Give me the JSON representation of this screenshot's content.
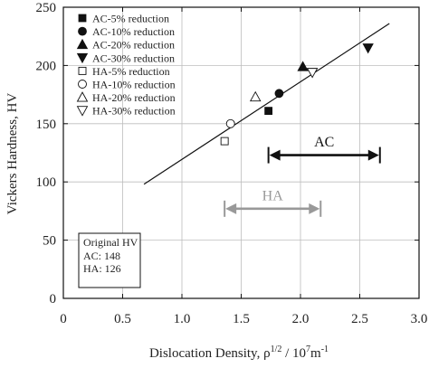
{
  "chart_data": {
    "type": "scatter",
    "xlabel": "Dislocation Density, ρ",
    "xlabel_sup1": "1/2",
    "xlabel_mid": " / 10",
    "xlabel_sup2": "7",
    "xlabel_end": "m",
    "xlabel_sup3": "-1",
    "ylabel": "Vickers Hardness, HV",
    "xlim": [
      0,
      3.0
    ],
    "ylim": [
      0,
      250
    ],
    "xticks": [
      0,
      0.5,
      1.0,
      1.5,
      2.0,
      2.5,
      3.0
    ],
    "xtick_labels": [
      "0",
      "0.5",
      "1.0",
      "1.5",
      "2.0",
      "2.5",
      "3.0"
    ],
    "yticks": [
      0,
      50,
      100,
      150,
      200,
      250
    ],
    "ytick_labels": [
      "0",
      "50",
      "100",
      "150",
      "200",
      "250"
    ],
    "grid": true,
    "legend_position": "top-left",
    "series": [
      {
        "name": "AC-5% reduction",
        "marker": "square-filled",
        "x": [
          1.73
        ],
        "y": [
          161
        ]
      },
      {
        "name": "AC-10% reduction",
        "marker": "circle-filled",
        "x": [
          1.82
        ],
        "y": [
          176
        ]
      },
      {
        "name": "AC-20% reduction",
        "marker": "triangle-up-filled",
        "x": [
          2.02
        ],
        "y": [
          199
        ]
      },
      {
        "name": "AC-30% reduction",
        "marker": "triangle-down-filled",
        "x": [
          2.57
        ],
        "y": [
          215
        ]
      },
      {
        "name": "HA-5% reduction",
        "marker": "square-open",
        "x": [
          1.36
        ],
        "y": [
          135
        ]
      },
      {
        "name": "HA-10% reduction",
        "marker": "circle-open",
        "x": [
          1.41
        ],
        "y": [
          150
        ]
      },
      {
        "name": "HA-20% reduction",
        "marker": "triangle-up-open",
        "x": [
          1.62
        ],
        "y": [
          173
        ]
      },
      {
        "name": "HA-30% reduction",
        "marker": "triangle-down-open",
        "x": [
          2.1
        ],
        "y": [
          194
        ]
      }
    ],
    "fit_line": {
      "x": [
        0.68,
        2.75
      ],
      "y": [
        98,
        236
      ]
    },
    "annotations": [
      {
        "label": "AC",
        "x_range": [
          1.73,
          2.67
        ],
        "y": 123,
        "color": "#111111",
        "label_y": 135
      },
      {
        "label": "HA",
        "x_range": [
          1.36,
          2.17
        ],
        "y": 77,
        "color": "#999999",
        "label_y": 89
      }
    ],
    "info_box": {
      "title": "Original HV",
      "lines": [
        "AC: 148",
        "HA: 126"
      ]
    }
  }
}
